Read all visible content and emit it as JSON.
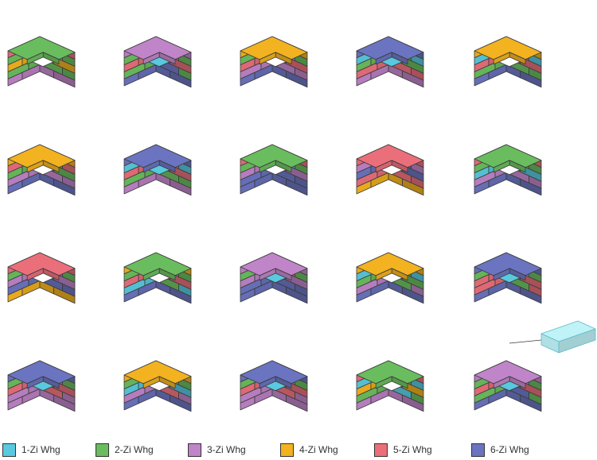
{
  "palette": {
    "1": "#58c9de",
    "2": "#6abd5e",
    "3": "#c084c8",
    "4": "#f3b21f",
    "5": "#ea6f7b",
    "6": "#6b74c0",
    "empty": "#ffffff",
    "outline": "#3a3a3a",
    "callout": "#bff3f8",
    "callout_stroke": "#5fb9c8"
  },
  "legend": [
    {
      "key": "1",
      "label": "1-Zi Whg"
    },
    {
      "key": "2",
      "label": "2-Zi Whg"
    },
    {
      "key": "3",
      "label": "3-Zi Whg"
    },
    {
      "key": "4",
      "label": "4-Zi Whg"
    },
    {
      "key": "5",
      "label": "5-Zi Whg"
    },
    {
      "key": "6",
      "label": "6-Zi Whg"
    }
  ],
  "cubes": [
    {
      "top": "2",
      "notch": "empty",
      "front": [
        "5",
        "2",
        "4",
        "2",
        "3"
      ],
      "side": [
        "5",
        "1",
        "4",
        "2",
        "3"
      ]
    },
    {
      "top": "3",
      "notch": "1",
      "front": [
        "3",
        "2",
        "5",
        "2",
        "6"
      ],
      "side": [
        "2",
        "5",
        "2",
        "6",
        "6"
      ]
    },
    {
      "top": "4",
      "notch": "empty",
      "front": [
        "4",
        "2",
        "5",
        "3",
        "6"
      ],
      "side": [
        "2",
        "1",
        "5",
        "3",
        "6"
      ]
    },
    {
      "top": "6",
      "notch": "1",
      "front": [
        "6",
        "1",
        "2",
        "5",
        "3"
      ],
      "side": [
        "6",
        "2",
        "5",
        "5",
        "3"
      ]
    },
    {
      "top": "4",
      "notch": "empty",
      "front": [
        "4",
        "1",
        "5",
        "2",
        "6"
      ],
      "side": [
        "3",
        "5",
        "5",
        "2",
        "6"
      ]
    },
    {
      "top": "4",
      "notch": "empty",
      "front": [
        "4",
        "5",
        "2",
        "3",
        "6"
      ],
      "side": [
        "3",
        "2",
        "5",
        "3",
        "6"
      ]
    },
    {
      "top": "6",
      "notch": "1",
      "front": [
        "6",
        "1",
        "5",
        "2",
        "3"
      ],
      "side": [
        "6",
        "5",
        "5",
        "2",
        "3"
      ]
    },
    {
      "top": "2",
      "notch": "empty",
      "front": [
        "5",
        "2",
        "3",
        "6",
        "6"
      ],
      "side": [
        "5",
        "1",
        "3",
        "6",
        "6"
      ]
    },
    {
      "top": "5",
      "notch": "empty",
      "front": [
        "5",
        "3",
        "6",
        "5",
        "4"
      ],
      "side": [
        "2",
        "6",
        "1",
        "5",
        "4"
      ]
    },
    {
      "top": "2",
      "notch": "empty",
      "front": [
        "5",
        "2",
        "1",
        "3",
        "6"
      ],
      "side": [
        "5",
        "2",
        "5",
        "3",
        "6"
      ]
    },
    {
      "top": "5",
      "notch": "empty",
      "front": [
        "5",
        "2",
        "3",
        "6",
        "4"
      ],
      "side": [
        "2",
        "3",
        "1",
        "6",
        "4"
      ]
    },
    {
      "top": "2",
      "notch": "empty",
      "front": [
        "4",
        "2",
        "5",
        "1",
        "6"
      ],
      "side": [
        "4",
        "2",
        "3",
        "2",
        "6"
      ]
    },
    {
      "top": "3",
      "notch": "1",
      "front": [
        "3",
        "2",
        "3",
        "6",
        "6"
      ],
      "side": [
        "2",
        "5",
        "2",
        "6",
        "6"
      ]
    },
    {
      "top": "4",
      "notch": "empty",
      "front": [
        "4",
        "1",
        "2",
        "3",
        "6"
      ],
      "side": [
        "3",
        "2",
        "5",
        "2",
        "6"
      ]
    },
    {
      "top": "6",
      "notch": "1",
      "front": [
        "6",
        "2",
        "5",
        "5",
        "6"
      ],
      "side": [
        "6",
        "1",
        "5",
        "2",
        "6"
      ]
    },
    {
      "top": "6",
      "notch": "1",
      "front": [
        "6",
        "2",
        "5",
        "3",
        "3"
      ],
      "side": [
        "6",
        "2",
        "2",
        "5",
        "3"
      ]
    },
    {
      "top": "4",
      "notch": "empty",
      "front": [
        "4",
        "2",
        "1",
        "3",
        "6"
      ],
      "side": [
        "3",
        "3",
        "2",
        "5",
        "6"
      ]
    },
    {
      "top": "6",
      "notch": "1",
      "front": [
        "6",
        "2",
        "5",
        "3",
        "3"
      ],
      "side": [
        "6",
        "2",
        "5",
        "5",
        "3"
      ]
    },
    {
      "top": "2",
      "notch": "empty",
      "front": [
        "5",
        "1",
        "4",
        "2",
        "3"
      ],
      "side": [
        "5",
        "2",
        "5",
        "1",
        "3"
      ]
    },
    {
      "top": "3",
      "notch": "1",
      "front": [
        "3",
        "2",
        "5",
        "2",
        "6"
      ],
      "side": [
        "2",
        "1",
        "2",
        "6",
        "6"
      ]
    }
  ]
}
